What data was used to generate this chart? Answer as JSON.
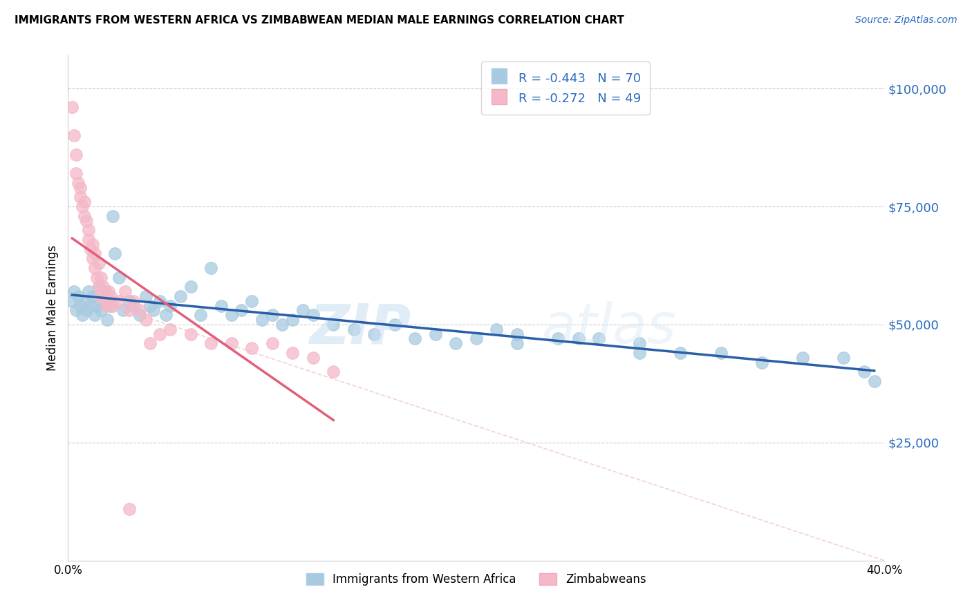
{
  "title": "IMMIGRANTS FROM WESTERN AFRICA VS ZIMBABWEAN MEDIAN MALE EARNINGS CORRELATION CHART",
  "source": "Source: ZipAtlas.com",
  "ylabel": "Median Male Earnings",
  "xlim": [
    0.0,
    0.4
  ],
  "ylim": [
    0,
    107000
  ],
  "yticks": [
    0,
    25000,
    50000,
    75000,
    100000
  ],
  "ytick_labels": [
    "",
    "$25,000",
    "$50,000",
    "$75,000",
    "$100,000"
  ],
  "xticks": [
    0.0,
    0.1,
    0.2,
    0.3,
    0.4
  ],
  "xtick_labels": [
    "0.0%",
    "",
    "",
    "",
    "40.0%"
  ],
  "legend_labels": [
    "Immigrants from Western Africa",
    "Zimbabweans"
  ],
  "legend_r_blue": "R = -0.443",
  "legend_n_blue": "N = 70",
  "legend_r_pink": "R = -0.272",
  "legend_n_pink": "N = 49",
  "blue_color": "#a8cadf",
  "pink_color": "#f4b8c8",
  "blue_line_color": "#2a5fa8",
  "pink_line_color": "#e0607a",
  "watermark_zip": "ZIP",
  "watermark_atlas": "atlas",
  "background_color": "#ffffff",
  "blue_scatter_x": [
    0.002,
    0.003,
    0.004,
    0.005,
    0.006,
    0.007,
    0.008,
    0.009,
    0.01,
    0.011,
    0.012,
    0.013,
    0.014,
    0.015,
    0.016,
    0.017,
    0.018,
    0.019,
    0.02,
    0.021,
    0.022,
    0.023,
    0.025,
    0.027,
    0.03,
    0.032,
    0.035,
    0.038,
    0.04,
    0.042,
    0.045,
    0.048,
    0.05,
    0.055,
    0.06,
    0.065,
    0.07,
    0.075,
    0.08,
    0.085,
    0.09,
    0.095,
    0.1,
    0.105,
    0.11,
    0.115,
    0.12,
    0.13,
    0.14,
    0.15,
    0.16,
    0.17,
    0.18,
    0.19,
    0.2,
    0.21,
    0.22,
    0.25,
    0.28,
    0.3,
    0.32,
    0.34,
    0.36,
    0.38,
    0.39,
    0.395,
    0.28,
    0.26,
    0.24,
    0.22
  ],
  "blue_scatter_y": [
    55000,
    57000,
    53000,
    56000,
    54000,
    52000,
    55000,
    53000,
    57000,
    54000,
    56000,
    52000,
    54000,
    58000,
    53000,
    55000,
    57000,
    51000,
    55000,
    54000,
    73000,
    65000,
    60000,
    53000,
    55000,
    54000,
    52000,
    56000,
    54000,
    53000,
    55000,
    52000,
    54000,
    56000,
    58000,
    52000,
    62000,
    54000,
    52000,
    53000,
    55000,
    51000,
    52000,
    50000,
    51000,
    53000,
    52000,
    50000,
    49000,
    48000,
    50000,
    47000,
    48000,
    46000,
    47000,
    49000,
    48000,
    47000,
    44000,
    44000,
    44000,
    42000,
    43000,
    43000,
    40000,
    38000,
    46000,
    47000,
    47000,
    46000
  ],
  "pink_scatter_x": [
    0.002,
    0.003,
    0.004,
    0.004,
    0.005,
    0.006,
    0.006,
    0.007,
    0.008,
    0.008,
    0.009,
    0.01,
    0.01,
    0.011,
    0.012,
    0.012,
    0.013,
    0.013,
    0.014,
    0.015,
    0.015,
    0.016,
    0.016,
    0.017,
    0.018,
    0.018,
    0.019,
    0.02,
    0.02,
    0.021,
    0.022,
    0.025,
    0.028,
    0.03,
    0.032,
    0.035,
    0.038,
    0.04,
    0.045,
    0.05,
    0.06,
    0.07,
    0.08,
    0.09,
    0.1,
    0.11,
    0.12,
    0.13,
    0.03
  ],
  "pink_scatter_y": [
    96000,
    90000,
    82000,
    86000,
    80000,
    77000,
    79000,
    75000,
    73000,
    76000,
    72000,
    70000,
    68000,
    66000,
    64000,
    67000,
    62000,
    65000,
    60000,
    63000,
    58000,
    60000,
    56000,
    58000,
    55000,
    57000,
    54000,
    57000,
    55000,
    56000,
    54000,
    55000,
    57000,
    53000,
    55000,
    53000,
    51000,
    46000,
    48000,
    49000,
    48000,
    46000,
    46000,
    45000,
    46000,
    44000,
    43000,
    40000,
    11000
  ]
}
